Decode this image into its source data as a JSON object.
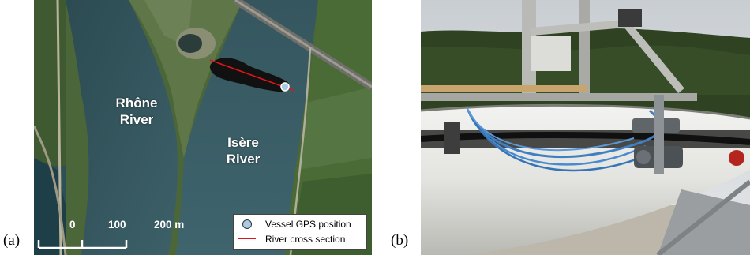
{
  "panels": {
    "a": {
      "tag": "(a)"
    },
    "b": {
      "tag": "(b)"
    }
  },
  "map": {
    "rivers": [
      {
        "line1": "Rhône",
        "line2": "River"
      },
      {
        "line1": "Isère",
        "line2": "River"
      }
    ],
    "scale_bar": {
      "labels": [
        "0",
        "100",
        "200 m"
      ]
    },
    "legend": [
      {
        "label": "Vessel GPS position",
        "symbol": "circle-marker",
        "color": "#a9cbe3"
      },
      {
        "label": "River cross section",
        "symbol": "line",
        "color": "#e0151b"
      }
    ]
  },
  "photo": {
    "subject": "boat-mounted-sensors-icon"
  }
}
